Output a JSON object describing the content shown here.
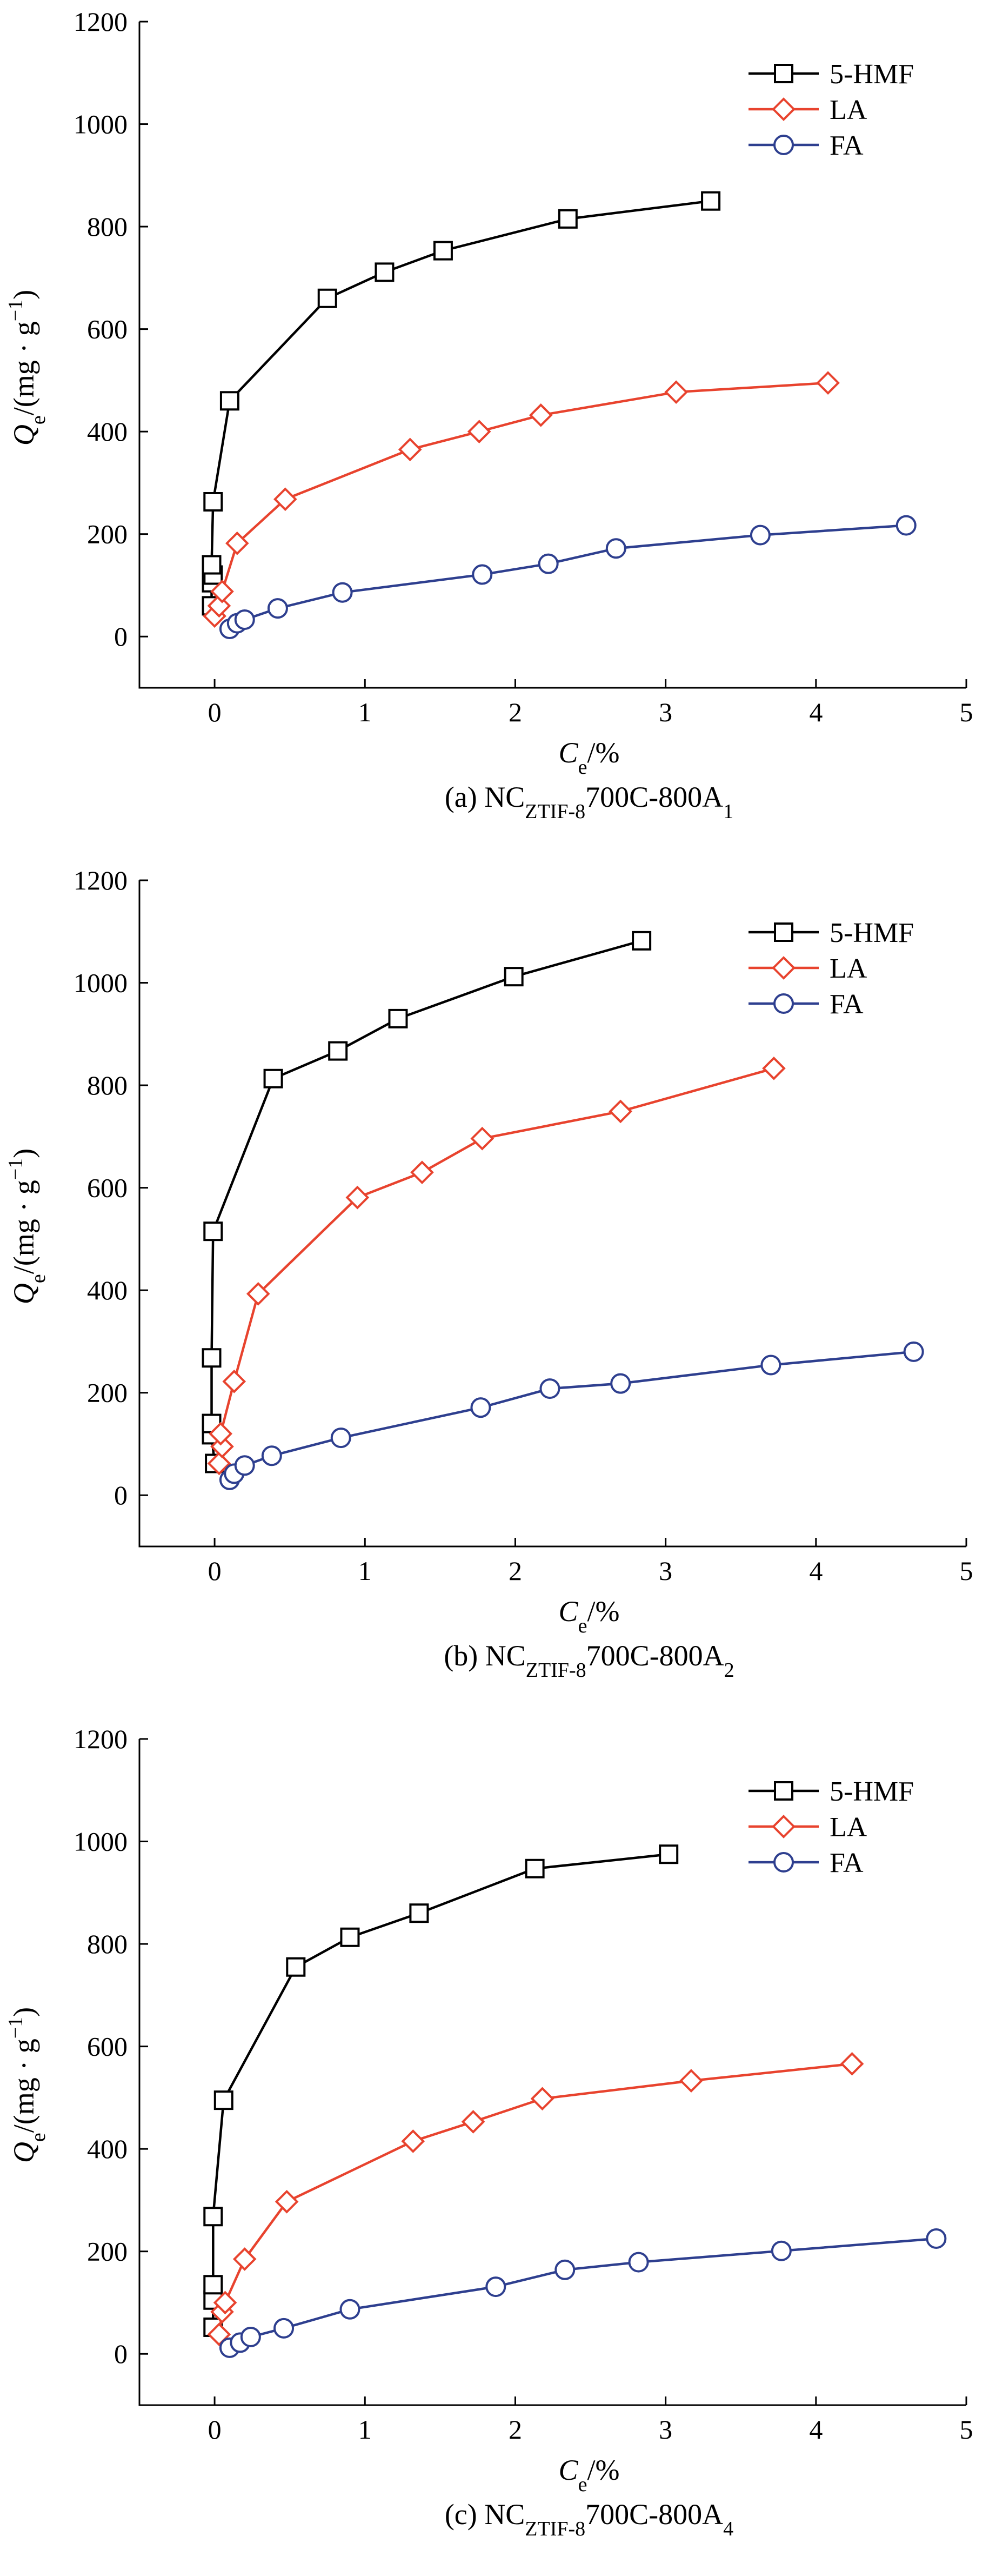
{
  "colors": {
    "hmf": "#000000",
    "la": "#e8432e",
    "fa": "#2e3f8f"
  },
  "chart_data": [
    {
      "type": "line",
      "title": "",
      "caption_prefix": "(a) NC",
      "caption_sub1": "ZTIF-8",
      "caption_mid": "700C-800A",
      "caption_sub2": "1",
      "xlabel_main": "C",
      "xlabel_sub": "e",
      "xlabel_rest": "/%",
      "ylabel_main": "Q",
      "ylabel_sub": "e",
      "ylabel_rest": "/(mg · g",
      "ylabel_sup": "−1",
      "ylabel_close": ")",
      "xlim": [
        -0.5,
        5
      ],
      "ylim": [
        -100,
        1200
      ],
      "xticks": [
        "0",
        "1",
        "2",
        "3",
        "4",
        "5"
      ],
      "yticks": [
        "0",
        "200",
        "400",
        "600",
        "800",
        "1000",
        "1200"
      ],
      "legend": [
        "5-HMF",
        "LA",
        "FA"
      ],
      "series": [
        {
          "name": "5-HMF",
          "marker": "square",
          "x": [
            -0.02,
            -0.02,
            -0.01,
            -0.02,
            -0.01,
            0.1,
            0.75,
            1.13,
            1.52,
            2.35,
            3.3
          ],
          "y": [
            60,
            105,
            120,
            140,
            263,
            460,
            660,
            711,
            753,
            815,
            850
          ]
        },
        {
          "name": "LA",
          "marker": "diamond",
          "x": [
            0.0,
            0.03,
            0.05,
            0.15,
            0.47,
            1.3,
            1.76,
            2.17,
            3.07,
            4.08
          ],
          "y": [
            40,
            60,
            88,
            182,
            268,
            365,
            400,
            432,
            477,
            495
          ]
        },
        {
          "name": "FA",
          "marker": "circle",
          "x": [
            0.1,
            0.15,
            0.2,
            0.42,
            0.85,
            1.78,
            2.22,
            2.67,
            3.63,
            4.6
          ],
          "y": [
            15,
            26,
            33,
            55,
            86,
            121,
            142,
            172,
            198,
            217
          ]
        }
      ]
    },
    {
      "type": "line",
      "title": "",
      "caption_prefix": "(b) NC",
      "caption_sub1": "ZTIF-8",
      "caption_mid": "700C-800A",
      "caption_sub2": "2",
      "xlabel_main": "C",
      "xlabel_sub": "e",
      "xlabel_rest": "/%",
      "ylabel_main": "Q",
      "ylabel_sub": "e",
      "ylabel_rest": "/(mg · g",
      "ylabel_sup": "−1",
      "ylabel_close": ")",
      "xlim": [
        -0.5,
        5
      ],
      "ylim": [
        -100,
        1200
      ],
      "xticks": [
        "0",
        "1",
        "2",
        "3",
        "4",
        "5"
      ],
      "yticks": [
        "0",
        "200",
        "400",
        "600",
        "800",
        "1000",
        "1200"
      ],
      "legend": [
        "5-HMF",
        "LA",
        "FA"
      ],
      "series": [
        {
          "name": "5-HMF",
          "marker": "square",
          "x": [
            0.0,
            -0.02,
            -0.02,
            -0.02,
            -0.01,
            0.39,
            0.82,
            1.22,
            1.99,
            2.84
          ],
          "y": [
            62,
            118,
            140,
            268,
            515,
            813,
            867,
            930,
            1012,
            1082
          ]
        },
        {
          "name": "LA",
          "marker": "diamond",
          "x": [
            0.03,
            0.05,
            0.04,
            0.13,
            0.29,
            0.95,
            1.38,
            1.78,
            2.7,
            3.72
          ],
          "y": [
            62,
            95,
            120,
            222,
            393,
            581,
            630,
            696,
            749,
            833
          ]
        },
        {
          "name": "FA",
          "marker": "circle",
          "x": [
            0.1,
            0.13,
            0.2,
            0.38,
            0.84,
            1.77,
            2.23,
            2.7,
            3.7,
            4.65
          ],
          "y": [
            30,
            42,
            58,
            77,
            112,
            171,
            208,
            218,
            254,
            280
          ]
        }
      ]
    },
    {
      "type": "line",
      "title": "",
      "caption_prefix": "(c) NC",
      "caption_sub1": "ZTIF-8",
      "caption_mid": "700C-800A",
      "caption_sub2": "4",
      "xlabel_main": "C",
      "xlabel_sub": "e",
      "xlabel_rest": "/%",
      "ylabel_main": "Q",
      "ylabel_sub": "e",
      "ylabel_rest": "/(mg · g",
      "ylabel_sup": "−1",
      "ylabel_close": ")",
      "xlim": [
        -0.5,
        5
      ],
      "ylim": [
        -100,
        1200
      ],
      "xticks": [
        "0",
        "1",
        "2",
        "3",
        "4",
        "5"
      ],
      "yticks": [
        "0",
        "200",
        "400",
        "600",
        "800",
        "1000",
        "1200"
      ],
      "legend": [
        "5-HMF",
        "LA",
        "FA"
      ],
      "series": [
        {
          "name": "5-HMF",
          "marker": "square",
          "x": [
            -0.01,
            -0.01,
            -0.01,
            -0.01,
            0.06,
            0.54,
            0.9,
            1.36,
            2.13,
            3.02
          ],
          "y": [
            52,
            105,
            135,
            268,
            495,
            755,
            813,
            860,
            947,
            975
          ]
        },
        {
          "name": "LA",
          "marker": "diamond",
          "x": [
            0.03,
            0.05,
            0.07,
            0.2,
            0.48,
            1.32,
            1.72,
            2.18,
            3.17,
            4.24
          ],
          "y": [
            38,
            82,
            100,
            185,
            297,
            415,
            453,
            498,
            533,
            566
          ]
        },
        {
          "name": "FA",
          "marker": "circle",
          "x": [
            0.1,
            0.17,
            0.24,
            0.46,
            0.9,
            1.87,
            2.33,
            2.82,
            3.77,
            4.8
          ],
          "y": [
            12,
            22,
            33,
            50,
            87,
            131,
            164,
            179,
            201,
            225
          ]
        }
      ]
    }
  ]
}
